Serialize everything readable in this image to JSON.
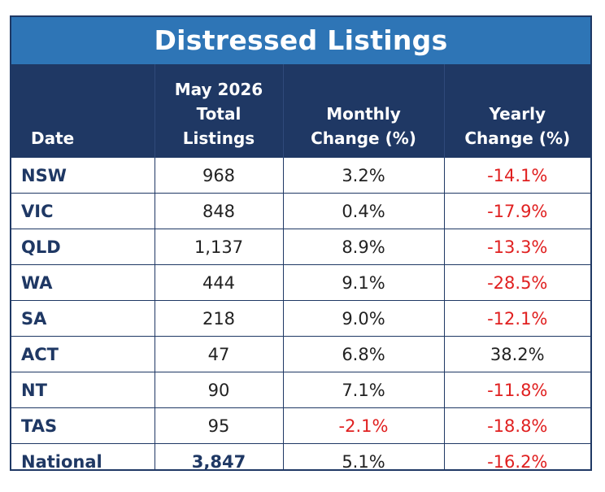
{
  "title": "Distressed Listings",
  "headers": {
    "date": "Date",
    "total": [
      "May 2026",
      "Total",
      "Listings"
    ],
    "monthly": [
      "Monthly",
      "Change (%)"
    ],
    "yearly": [
      "Yearly",
      "Change (%)"
    ]
  },
  "rows": [
    {
      "state": "NSW",
      "total": "968",
      "monthly": "3.2%",
      "yearly": "-14.1%",
      "monthly_negative": false,
      "yearly_negative": true
    },
    {
      "state": "VIC",
      "total": "848",
      "monthly": "0.4%",
      "yearly": "-17.9%",
      "monthly_negative": false,
      "yearly_negative": true
    },
    {
      "state": "QLD",
      "total": "1,137",
      "monthly": "8.9%",
      "yearly": "-13.3%",
      "monthly_negative": false,
      "yearly_negative": true
    },
    {
      "state": "WA",
      "total": "444",
      "monthly": "9.1%",
      "yearly": "-28.5%",
      "monthly_negative": false,
      "yearly_negative": true
    },
    {
      "state": "SA",
      "total": "218",
      "monthly": "9.0%",
      "yearly": "-12.1%",
      "monthly_negative": false,
      "yearly_negative": true
    },
    {
      "state": "ACT",
      "total": "47",
      "monthly": "6.8%",
      "yearly": "38.2%",
      "monthly_negative": false,
      "yearly_negative": false
    },
    {
      "state": "NT",
      "total": "90",
      "monthly": "7.1%",
      "yearly": "-11.8%",
      "monthly_negative": false,
      "yearly_negative": true
    },
    {
      "state": "TAS",
      "total": "95",
      "monthly": "-2.1%",
      "yearly": "-18.8%",
      "monthly_negative": true,
      "yearly_negative": true
    },
    {
      "state": "National",
      "total": "3,847",
      "monthly": "5.1%",
      "yearly": "-16.2%",
      "monthly_negative": false,
      "yearly_negative": true,
      "total_bold": true
    }
  ],
  "colors": {
    "title_bg": "#2e75b6",
    "header_bg": "#1f3864",
    "negative": "#e02020"
  }
}
